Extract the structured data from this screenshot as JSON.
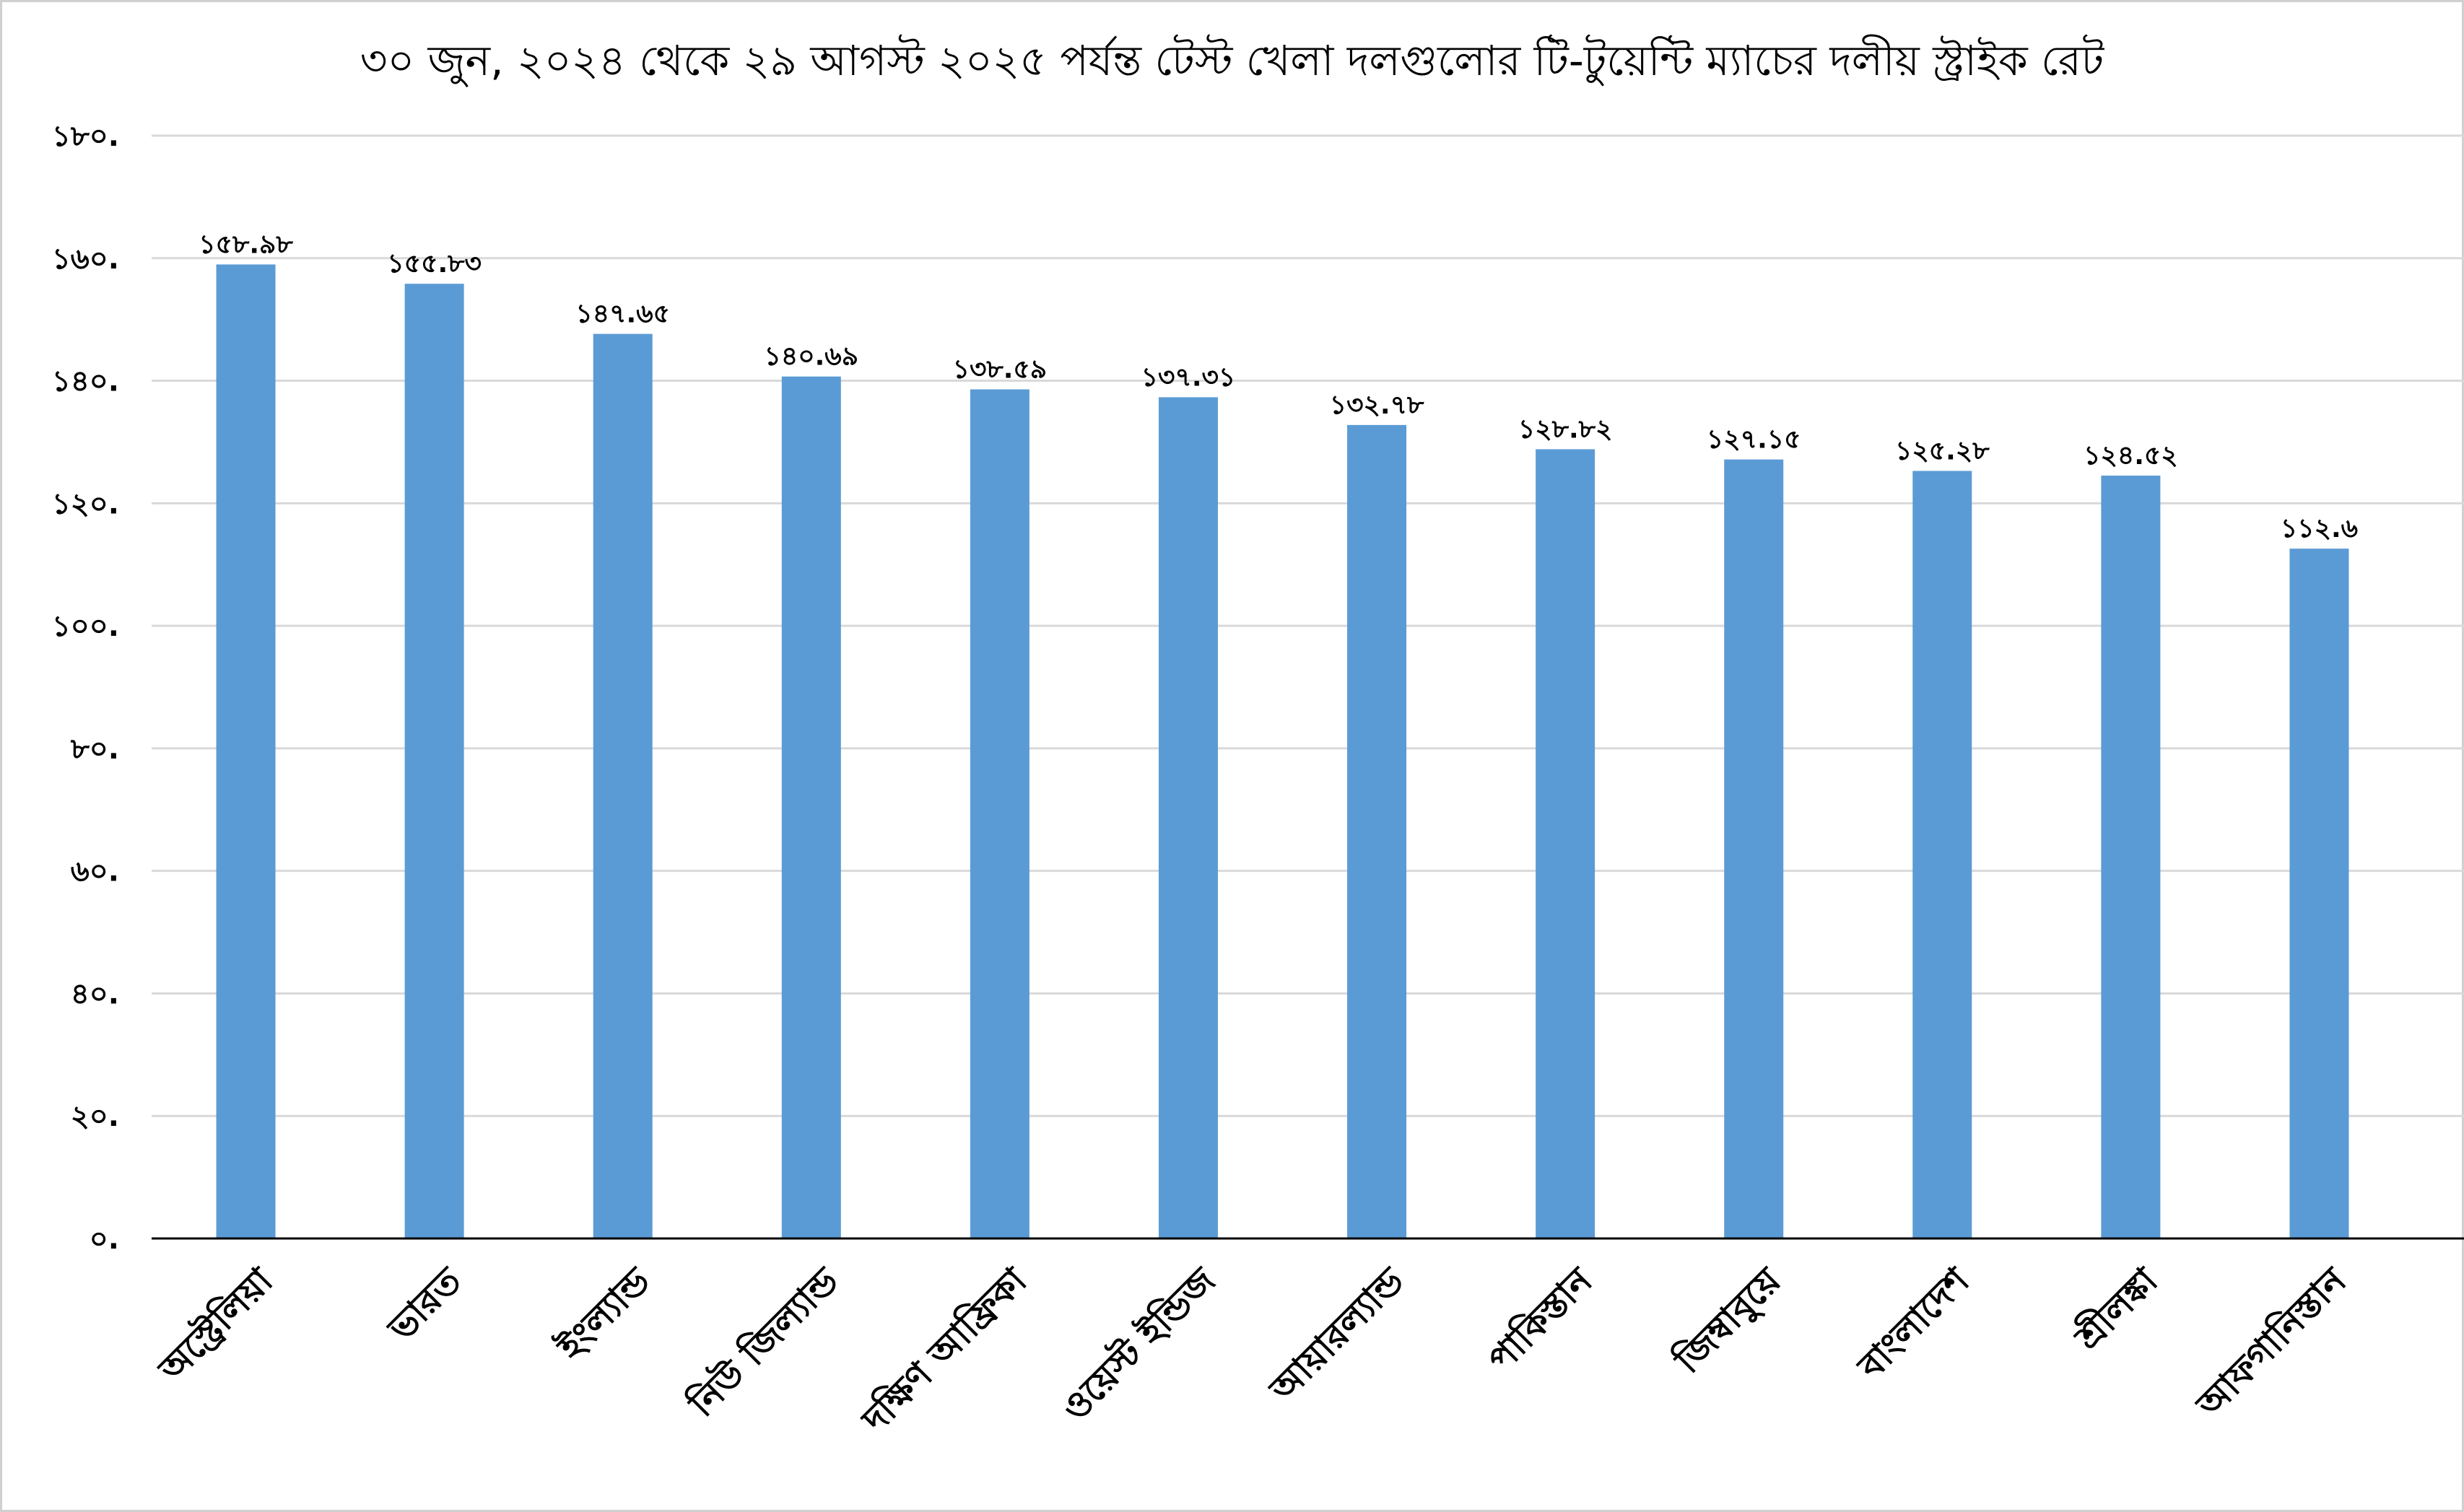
{
  "chart_data": {
    "type": "bar",
    "title": "৩০ জুন, ২০২৪ থেকে ২৯ আগস্ট ২০২৫ পর্যন্ত টেস্ট খেলা দলগুলোর টি-টুয়েন্টি ম্যাচের দলীয় স্ট্রাইক রেট",
    "categories": [
      "অস্ট্রেলিয়া",
      "ভারত",
      "ইংল্যান্ড",
      "নিউ জিল্যান্ড",
      "দক্ষিণ আফ্রিকা",
      "ওয়েস্ট ইন্ডিজ",
      "আয়ারল্যান্ড",
      "পাকিস্তান",
      "জিম্বাবুয়ে",
      "বাংলাদেশ",
      "শ্রীলঙ্কা",
      "আফগানিস্তান"
    ],
    "values": [
      158.98,
      155.83,
      147.65,
      140.69,
      138.59,
      137.31,
      132.78,
      128.82,
      127.15,
      125.28,
      124.52,
      112.6
    ],
    "value_labels": [
      "১৫৮.৯৮",
      "১৫৫.৮৩",
      "১৪৭.৬৫",
      "১৪০.৬৯",
      "১৩৮.৫৯",
      "১৩৭.৩১",
      "১৩২.৭৮",
      "১২৮.৮২",
      "১২৭.১৫",
      "১২৫.২৮",
      "১২৪.৫২",
      "১১২.৬"
    ],
    "y_ticks": [
      0,
      20,
      40,
      60,
      80,
      100,
      120,
      140,
      160,
      180
    ],
    "y_tick_labels": [
      "০.",
      "২০.",
      "৪০.",
      "৬০.",
      "৮০.",
      "১০০.",
      "১২০.",
      "১৪০.",
      "১৬০.",
      "১৮০."
    ],
    "ylim": [
      0,
      180
    ],
    "grid": true,
    "legend": "none",
    "bar_color": "#5b9bd5",
    "xlabel": "",
    "ylabel": ""
  }
}
